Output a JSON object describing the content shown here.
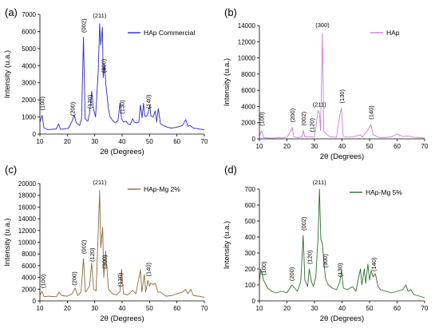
{
  "figure": {
    "title": ""
  },
  "chart_data": [
    {
      "type": "line",
      "panel_label": "(a)",
      "title": "",
      "xlabel": "2θ (Degrees)",
      "ylabel": "Intensity (u.a.)",
      "xlim": [
        10,
        70
      ],
      "ylim": [
        0,
        7000
      ],
      "xticks": [
        "10",
        "20",
        "30",
        "40",
        "50",
        "60",
        "70"
      ],
      "yticks": [
        "0",
        "1000",
        "2000",
        "3000",
        "4000",
        "5000",
        "6000",
        "7000"
      ],
      "grid": false,
      "legend_position": "top-right",
      "series": [
        {
          "name": "HAp Commercial",
          "color": "#2b2bc4",
          "x": [
            10,
            10.8,
            11.5,
            13,
            14.5,
            16,
            16.8,
            17.5,
            19,
            20.5,
            21.8,
            22.5,
            23.3,
            24.5,
            25.2,
            25.9,
            26.5,
            27.5,
            28.1,
            28.9,
            29.5,
            30.3,
            31.3,
            31.8,
            32.2,
            32.8,
            33.1,
            33.6,
            34.1,
            35,
            35.5,
            36.5,
            37.5,
            38.5,
            39.2,
            39.8,
            40.5,
            41.5,
            42.1,
            43,
            43.8,
            44.5,
            45.3,
            46.1,
            46.7,
            47.3,
            47.8,
            48.3,
            49,
            49.5,
            50.1,
            50.5,
            51.3,
            52.1,
            52.6,
            53.2,
            54,
            55,
            56.5,
            58,
            60,
            62,
            63.2,
            64,
            64.8,
            66,
            68,
            70
          ],
          "values": [
            700,
            1100,
            350,
            260,
            280,
            300,
            600,
            280,
            300,
            350,
            780,
            1100,
            650,
            500,
            900,
            5650,
            900,
            750,
            1200,
            2500,
            1500,
            1000,
            3700,
            6450,
            5200,
            6250,
            3300,
            4050,
            2850,
            1500,
            1050,
            800,
            650,
            800,
            1800,
            900,
            700,
            750,
            600,
            550,
            900,
            700,
            650,
            700,
            1700,
            950,
            1800,
            1050,
            1050,
            1250,
            1700,
            1050,
            1000,
            1350,
            700,
            1500,
            600,
            500,
            400,
            350,
            400,
            500,
            850,
            450,
            500,
            350,
            300,
            250
          ]
        }
      ],
      "annotations": [
        {
          "text": "(100)",
          "x": 10.8
        },
        {
          "text": "(200)",
          "x": 21.8
        },
        {
          "text": "(002)",
          "x": 25.9
        },
        {
          "text": "(120)",
          "x": 28.1
        },
        {
          "text": "(211)",
          "x": 31.8
        },
        {
          "text": "(300)",
          "x": 33.1
        },
        {
          "text": "(130)",
          "x": 39.8
        },
        {
          "text": "(140)",
          "x": 49.4
        }
      ]
    },
    {
      "type": "line",
      "panel_label": "(b)",
      "title": "",
      "xlabel": "2θ (Degrees)",
      "ylabel": "Intensity (u.a.)",
      "xlim": [
        10,
        70
      ],
      "ylim": [
        0,
        14000
      ],
      "xticks": [
        "10",
        "20",
        "30",
        "40",
        "50",
        "60",
        "70"
      ],
      "yticks": [
        "0",
        "2000",
        "4000",
        "6000",
        "8000",
        "10000",
        "12000",
        "14000"
      ],
      "grid": false,
      "legend_position": "top-right",
      "series": [
        {
          "name": "HAp",
          "color": "#c77fdc",
          "x": [
            10,
            10.8,
            11.5,
            13,
            16,
            18,
            20,
            21.5,
            21.9,
            22.5,
            24,
            25.5,
            25.9,
            26.5,
            28.1,
            29,
            30,
            31.3,
            31.8,
            32.2,
            32.9,
            33.4,
            34,
            35.5,
            38,
            39.2,
            39.8,
            40.4,
            42,
            44,
            46.7,
            47.3,
            49.4,
            50.5,
            51.3,
            52.2,
            53.1,
            55,
            58,
            60,
            62,
            64,
            66,
            68,
            70
          ],
          "values": [
            400,
            1000,
            150,
            100,
            120,
            150,
            200,
            1000,
            1450,
            250,
            150,
            250,
            1050,
            250,
            250,
            250,
            200,
            3500,
            3200,
            1000,
            13000,
            900,
            700,
            250,
            200,
            3000,
            3800,
            300,
            200,
            250,
            500,
            200,
            1100,
            1800,
            500,
            400,
            200,
            150,
            250,
            600,
            300,
            350,
            200,
            150,
            100
          ]
        }
      ],
      "annotations": [
        {
          "text": "(100)",
          "x": 10.8
        },
        {
          "text": "(200)",
          "x": 21.9
        },
        {
          "text": "(002)",
          "x": 25.9
        },
        {
          "text": "(120)",
          "x": 29
        },
        {
          "text": "(211)",
          "x": 31.8
        },
        {
          "text": "(300)",
          "x": 32.9
        },
        {
          "text": "(130)",
          "x": 39.8
        },
        {
          "text": "(140)",
          "x": 50.5
        }
      ]
    },
    {
      "type": "line",
      "panel_label": "(c)",
      "title": "",
      "xlabel": "2θ (Degrees)",
      "ylabel": "Intensity (u.a.)",
      "xlim": [
        10,
        70
      ],
      "ylim": [
        0,
        20000
      ],
      "xticks": [
        "10",
        "20",
        "30",
        "40",
        "50",
        "60",
        "70"
      ],
      "yticks": [
        "0",
        "2000",
        "4000",
        "6000",
        "8000",
        "10000",
        "12000",
        "14000",
        "16000",
        "18000",
        "20000"
      ],
      "grid": false,
      "legend_position": "top-right",
      "series": [
        {
          "name": "HAp-Mg 2%",
          "color": "#8b6a3d",
          "x": [
            10,
            10.8,
            11.5,
            13,
            16,
            17,
            18,
            20,
            21.8,
            22.8,
            23.8,
            25,
            25.9,
            26.6,
            28.1,
            28.9,
            29.6,
            30.5,
            31.3,
            31.8,
            32.2,
            32.9,
            33.3,
            34,
            35,
            36.5,
            38,
            39.2,
            39.8,
            40.5,
            42,
            43.8,
            45,
            46.7,
            47.2,
            48.1,
            48.6,
            49.4,
            50,
            50.5,
            51.3,
            52.1,
            53.1,
            54,
            56,
            58,
            60,
            62,
            63.2,
            64,
            65,
            66,
            68,
            70
          ],
          "values": [
            1000,
            1600,
            700,
            800,
            700,
            1500,
            900,
            800,
            1200,
            2200,
            900,
            1500,
            7200,
            1500,
            2500,
            6500,
            2000,
            1700,
            12000,
            18800,
            9000,
            12500,
            4000,
            8500,
            2000,
            1200,
            1000,
            1600,
            5400,
            1200,
            1000,
            1800,
            1200,
            5300,
            1500,
            4500,
            1500,
            3500,
            2500,
            3000,
            2800,
            3000,
            1500,
            1500,
            800,
            900,
            1200,
            1500,
            2000,
            1200,
            2000,
            900,
            800,
            600
          ]
        }
      ],
      "annotations": [
        {
          "text": "(100)",
          "x": 11.0
        },
        {
          "text": "(200)",
          "x": 22.4
        },
        {
          "text": "(002)",
          "x": 25.9
        },
        {
          "text": "(120)",
          "x": 29
        },
        {
          "text": "(211)",
          "x": 31.8
        },
        {
          "text": "(300)",
          "x": 33.4
        },
        {
          "text": "(130)",
          "x": 39.2
        },
        {
          "text": "(140)",
          "x": 49.5
        }
      ]
    },
    {
      "type": "line",
      "panel_label": "(d)",
      "title": "",
      "xlabel": "2θ (Degrees)",
      "ylabel": "Intensity (u.a.)",
      "xlim": [
        10,
        70
      ],
      "ylim": [
        0,
        700
      ],
      "xticks": [
        "10",
        "20",
        "30",
        "40",
        "50",
        "60",
        "70"
      ],
      "yticks": [
        "0",
        "100",
        "200",
        "300",
        "400",
        "500",
        "600",
        "700"
      ],
      "grid": false,
      "legend_position": "top-right",
      "series": [
        {
          "name": "HAp-Mg 5%",
          "color": "#2e6b2e",
          "x": [
            10,
            10.5,
            11.5,
            13,
            14.5,
            16,
            18,
            20,
            21.8,
            22.8,
            23.8,
            25,
            25.9,
            26.5,
            27.5,
            28.1,
            28.9,
            29.6,
            30.5,
            31.3,
            31.8,
            32.3,
            32.9,
            33.4,
            34,
            35,
            36.5,
            38,
            39.2,
            39.8,
            40.5,
            42,
            43.8,
            45,
            46.7,
            47.2,
            48.1,
            48.6,
            49.4,
            50,
            50.6,
            51.3,
            52.1,
            53.1,
            54,
            56,
            58,
            60,
            62,
            63.2,
            64,
            65,
            66,
            68,
            70
          ],
          "values": [
            120,
            200,
            130,
            80,
            60,
            50,
            60,
            50,
            100,
            80,
            60,
            120,
            410,
            130,
            90,
            200,
            120,
            90,
            150,
            400,
            700,
            390,
            350,
            250,
            140,
            100,
            80,
            70,
            120,
            190,
            80,
            70,
            90,
            60,
            200,
            100,
            200,
            110,
            230,
            130,
            190,
            150,
            170,
            90,
            70,
            60,
            50,
            60,
            70,
            100,
            60,
            70,
            40,
            30,
            20
          ]
        }
      ],
      "annotations": [
        {
          "text": "(100)",
          "x": 11.5
        },
        {
          "text": "(200)",
          "x": 21.6
        },
        {
          "text": "(002)",
          "x": 25.9
        },
        {
          "text": "(120)",
          "x": 28.1
        },
        {
          "text": "(211)",
          "x": 31.8
        },
        {
          "text": "(300)",
          "x": 33.8
        },
        {
          "text": "(130)",
          "x": 39.2
        },
        {
          "text": "(140)",
          "x": 51.5
        }
      ]
    }
  ]
}
